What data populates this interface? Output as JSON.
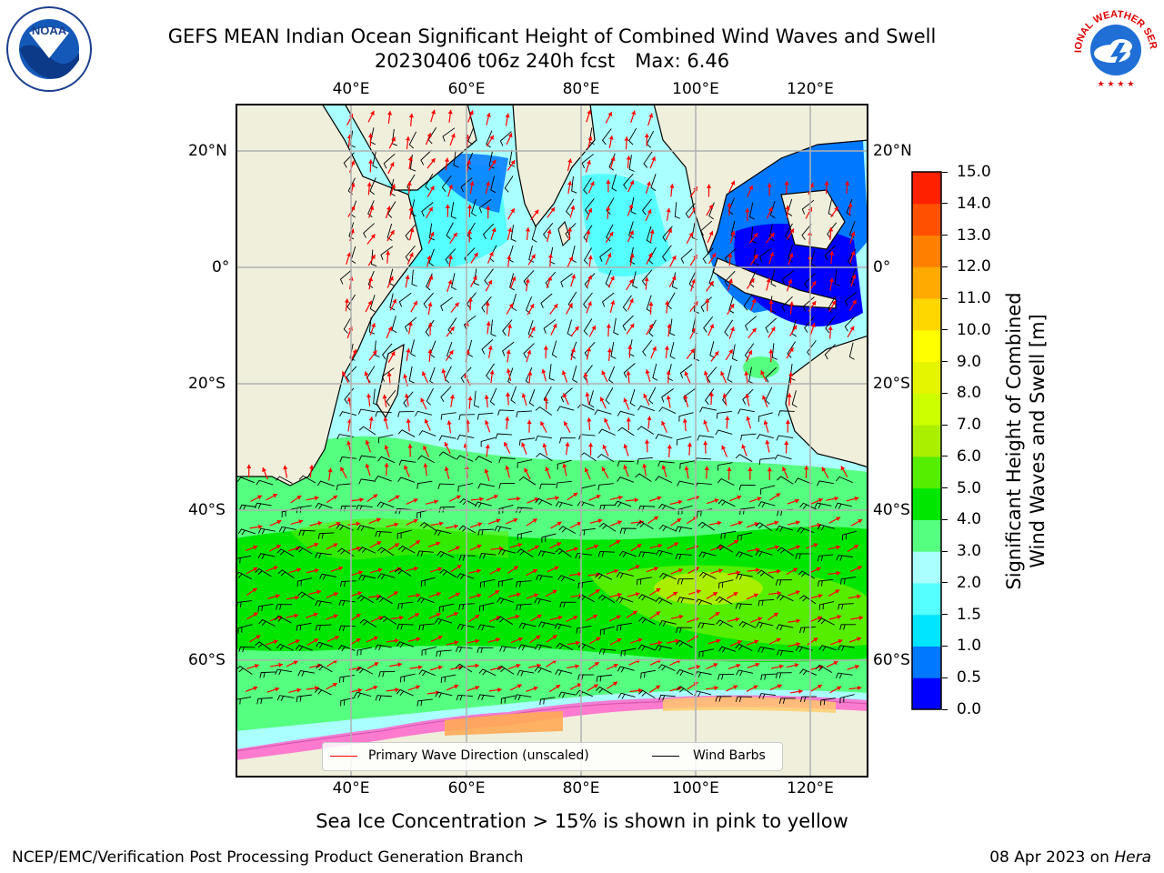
{
  "title": {
    "line1": "GEFS MEAN Indian Ocean Significant Height of Combined Wind Waves and Swell",
    "line2_run": "20230406 t06z 240h fcst",
    "line2_max": "Max: 6.46"
  },
  "logos": {
    "left": "NOAA",
    "right": "NATIONAL WEATHER SERVICE"
  },
  "axes": {
    "lon_labels": [
      "40°E",
      "60°E",
      "80°E",
      "100°E",
      "120°E"
    ],
    "lat_labels_left": [
      "20°N",
      "0°",
      "20°S",
      "40°S",
      "60°S"
    ],
    "lat_labels_right": [
      "20°N",
      "0°",
      "20°S",
      "40°S",
      "60°S"
    ]
  },
  "colorbar": {
    "label_line1": "Significant Height of Combined",
    "label_line2": "Wind Waves and Swell [m]",
    "ticks": [
      "0.0",
      "0.5",
      "1.0",
      "1.5",
      "2.0",
      "3.0",
      "4.0",
      "5.0",
      "6.0",
      "7.0",
      "8.0",
      "9.0",
      "10.0",
      "11.0",
      "12.0",
      "13.0",
      "14.0",
      "15.0"
    ],
    "colors": [
      "#0000ff",
      "#0078ff",
      "#00e5ff",
      "#55ffff",
      "#aaffff",
      "#55ff7f",
      "#00e600",
      "#55ee00",
      "#aaee00",
      "#ccff00",
      "#e5f500",
      "#ffff00",
      "#ffd700",
      "#ffaa00",
      "#ff8000",
      "#ff5000",
      "#ff2000",
      "#ff0000"
    ]
  },
  "legend": {
    "wave_label": "Primary Wave Direction (unscaled)",
    "wind_label": "Wind Barbs",
    "wave_color": "#ff0000",
    "wind_color": "#000000"
  },
  "caption": "Sea Ice Concentration > 15% is shown in pink to yellow",
  "footer": {
    "left": "NCEP/EMC/Verification Post Processing Product Generation Branch",
    "date": "08 Apr 2023 on ",
    "machine": "Hera"
  },
  "map_data": {
    "type": "map",
    "region": "Indian Ocean",
    "lon_range": [
      20,
      130
    ],
    "lat_range": [
      -73,
      28
    ],
    "land_color": "#efefdc",
    "variable": "significant wave height (m)",
    "max_value": 6.46
  }
}
